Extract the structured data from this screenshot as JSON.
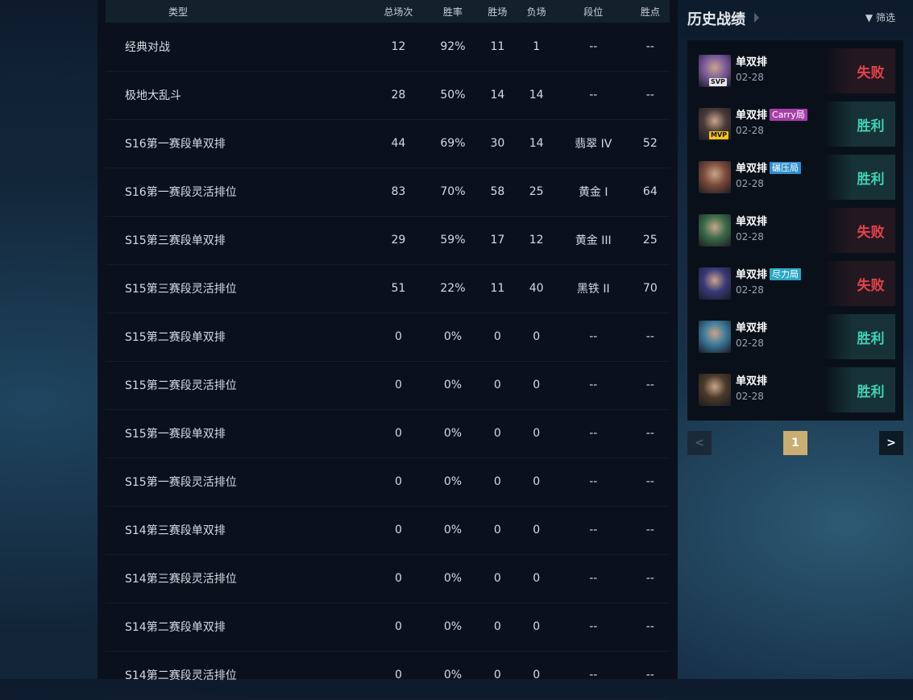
{
  "table": {
    "headers": [
      "类型",
      "总场次",
      "胜率",
      "胜场",
      "负场",
      "段位",
      "胜点"
    ],
    "rows": [
      [
        "经典对战",
        "12",
        "92%",
        "11",
        "1",
        "--",
        "--"
      ],
      [
        "极地大乱斗",
        "28",
        "50%",
        "14",
        "14",
        "--",
        "--"
      ],
      [
        "S16第一赛段单双排",
        "44",
        "69%",
        "30",
        "14",
        "翡翠 IV",
        "52"
      ],
      [
        "S16第一赛段灵活排位",
        "83",
        "70%",
        "58",
        "25",
        "黄金 I",
        "64"
      ],
      [
        "S15第三赛段单双排",
        "29",
        "59%",
        "17",
        "12",
        "黄金 III",
        "25"
      ],
      [
        "S15第三赛段灵活排位",
        "51",
        "22%",
        "11",
        "40",
        "黑铁 II",
        "70"
      ],
      [
        "S15第二赛段单双排",
        "0",
        "0%",
        "0",
        "0",
        "--",
        "--"
      ],
      [
        "S15第二赛段灵活排位",
        "0",
        "0%",
        "0",
        "0",
        "--",
        "--"
      ],
      [
        "S15第一赛段单双排",
        "0",
        "0%",
        "0",
        "0",
        "--",
        "--"
      ],
      [
        "S15第一赛段灵活排位",
        "0",
        "0%",
        "0",
        "0",
        "--",
        "--"
      ],
      [
        "S14第三赛段单双排",
        "0",
        "0%",
        "0",
        "0",
        "--",
        "--"
      ],
      [
        "S14第三赛段灵活排位",
        "0",
        "0%",
        "0",
        "0",
        "--",
        "--"
      ],
      [
        "S14第二赛段单双排",
        "0",
        "0%",
        "0",
        "0",
        "--",
        "--"
      ],
      [
        "S14第二赛段灵活排位",
        "0",
        "0%",
        "0",
        "0",
        "--",
        "--"
      ]
    ]
  },
  "history": {
    "title": "历史战绩",
    "filter": "筛选",
    "matches": [
      {
        "mode": "单双排",
        "tag": "",
        "badge": "SVP",
        "date": "02-28",
        "result": "失败",
        "win": false,
        "avatar": "#7a5a9a"
      },
      {
        "mode": "单双排",
        "tag": "Carry局",
        "tag_color": "#a73fa9",
        "badge": "MVP",
        "date": "02-28",
        "result": "胜利",
        "win": true,
        "avatar": "#4a3a3a"
      },
      {
        "mode": "单双排",
        "tag": "碾压局",
        "tag_color": "#2d8fce",
        "badge": "",
        "date": "02-28",
        "result": "胜利",
        "win": true,
        "avatar": "#7a4a3a"
      },
      {
        "mode": "单双排",
        "tag": "",
        "badge": "",
        "date": "02-28",
        "result": "失败",
        "win": false,
        "avatar": "#3a6a4a"
      },
      {
        "mode": "单双排",
        "tag": "尽力局",
        "tag_color": "#2aa7c4",
        "badge": "",
        "date": "02-28",
        "result": "失败",
        "win": false,
        "avatar": "#3a3a7a"
      },
      {
        "mode": "单双排",
        "tag": "",
        "badge": "",
        "date": "02-28",
        "result": "胜利",
        "win": true,
        "avatar": "#3a7a9a"
      },
      {
        "mode": "单双排",
        "tag": "",
        "badge": "",
        "date": "02-28",
        "result": "胜利",
        "win": true,
        "avatar": "#4a3a2a"
      }
    ],
    "page": "1"
  }
}
